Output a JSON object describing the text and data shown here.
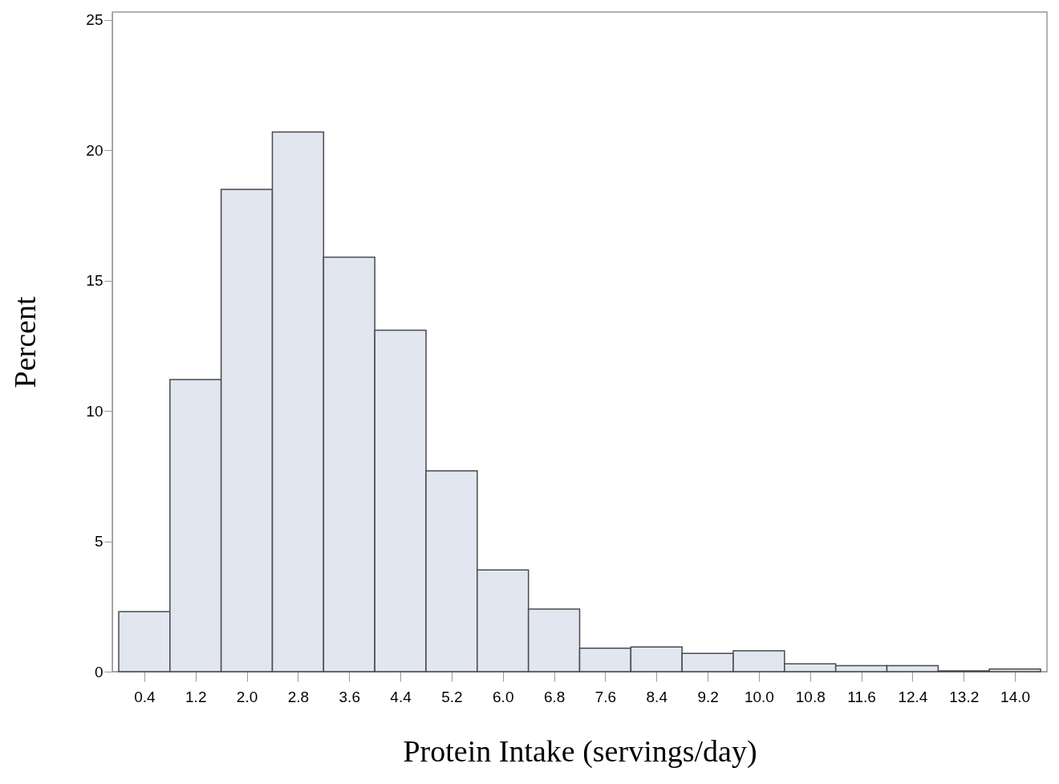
{
  "chart_data": {
    "type": "histogram",
    "xlabel": "Protein Intake (servings/day)",
    "ylabel": "Percent",
    "bins": [
      0,
      0.8,
      1.6,
      2.4,
      3.2,
      4.0,
      4.8,
      5.6,
      6.4,
      7.2,
      8.0,
      8.8,
      9.6,
      10.4,
      11.2,
      12.0,
      12.8,
      13.6,
      14.4
    ],
    "values": [
      2.3,
      11.2,
      18.5,
      20.7,
      15.9,
      13.1,
      7.7,
      3.9,
      2.4,
      0.9,
      0.95,
      0.7,
      0.8,
      0.3,
      0.23,
      0.23,
      0.03,
      0.1
    ],
    "color": "#e1e6f0",
    "xlim": [
      -0.1,
      14.5
    ],
    "ylim": [
      0,
      25.3
    ],
    "xticks": [
      0.4,
      1.2,
      {
        "value": 2,
        "label": "2.0"
      },
      2.8,
      3.6,
      4.4,
      5.2,
      {
        "value": 6,
        "label": "6.0"
      },
      6.8,
      7.6,
      8.4,
      9.2,
      {
        "value": 10,
        "label": "10.0"
      },
      10.8,
      11.6,
      12.4,
      13.2,
      {
        "value": 14,
        "label": "14.0"
      }
    ],
    "yticks": [
      0,
      5,
      10,
      15,
      20,
      25
    ],
    "grid": false
  }
}
